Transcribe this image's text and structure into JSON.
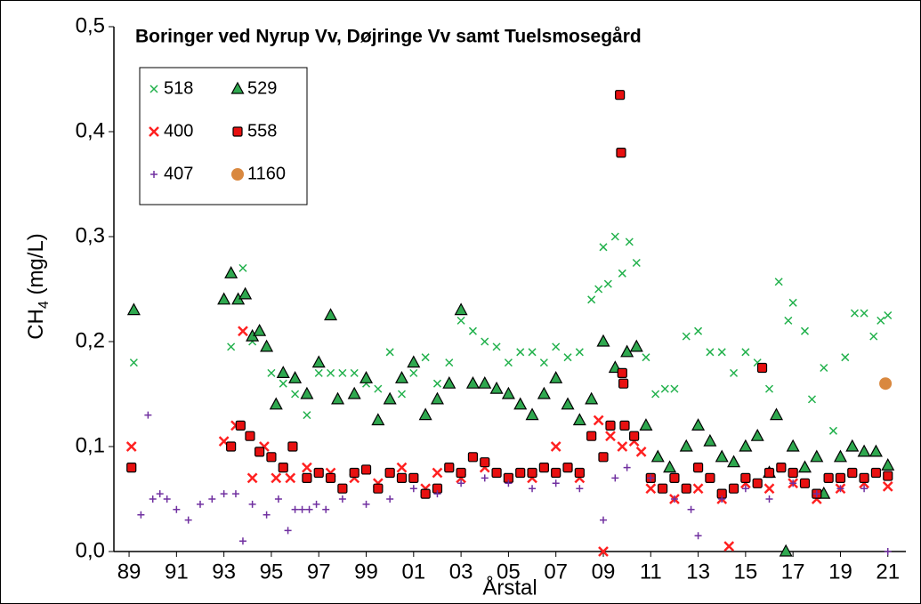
{
  "chart_data": {
    "type": "scatter",
    "title": "Boringer ved Nyrup Vv, Døjringe Vv samt Tuelsmosegård",
    "x_label": "Årstal",
    "y_label": [
      "CH",
      "4",
      " (mg/L)"
    ],
    "xlim": [
      1988.36,
      2021.76
    ],
    "ylim": [
      0,
      0.5
    ],
    "xticks": [
      {
        "value": 1989,
        "label": "89"
      },
      {
        "value": 1991,
        "label": "91"
      },
      {
        "value": 1993,
        "label": "93"
      },
      {
        "value": 1995,
        "label": "95"
      },
      {
        "value": 1997,
        "label": "97"
      },
      {
        "value": 1999,
        "label": "99"
      },
      {
        "value": 2001,
        "label": "01"
      },
      {
        "value": 2003,
        "label": "03"
      },
      {
        "value": 2005,
        "label": "05"
      },
      {
        "value": 2007,
        "label": "07"
      },
      {
        "value": 2009,
        "label": "09"
      },
      {
        "value": 2011,
        "label": "11"
      },
      {
        "value": 2013,
        "label": "13"
      },
      {
        "value": 2015,
        "label": "15"
      },
      {
        "value": 2017,
        "label": "17"
      },
      {
        "value": 2019,
        "label": "19"
      },
      {
        "value": 2021,
        "label": "21"
      }
    ],
    "yticks": [
      {
        "value": 0,
        "label": "0,0"
      },
      {
        "value": 0.1,
        "label": "0,1"
      },
      {
        "value": 0.2,
        "label": "0,2"
      },
      {
        "value": 0.3,
        "label": "0,3"
      },
      {
        "value": 0.4,
        "label": "0,4"
      },
      {
        "value": 0.5,
        "label": "0,5"
      }
    ],
    "grid": false,
    "legend": "upper left",
    "series": [
      {
        "name": "518",
        "color": "#22b14c",
        "marker": "x",
        "x": [
          1989.2,
          1993.3,
          1993.8,
          1994.2,
          1995,
          1995.5,
          1996,
          1996.5,
          1997,
          1997.5,
          1998,
          1998.5,
          1999,
          1999.5,
          2000,
          2000.5,
          2001,
          2001.5,
          2002,
          2002.5,
          2003,
          2003.5,
          2004,
          2004.5,
          2005,
          2005.5,
          2006,
          2006.5,
          2007,
          2007.5,
          2008,
          2008.5,
          2008.8,
          2009,
          2009.2,
          2009.5,
          2009.8,
          2010.1,
          2010.4,
          2010.8,
          2011.2,
          2011.6,
          2012,
          2012.5,
          2013,
          2013.5,
          2014,
          2014.5,
          2015,
          2015.5,
          2016,
          2016.4,
          2016.8,
          2017,
          2017.5,
          2017.8,
          2018.3,
          2018.7,
          2019.2,
          2019.6,
          2020,
          2020.4,
          2020.7,
          2021
        ],
        "values": [
          0.18,
          0.195,
          0.27,
          0.2,
          0.17,
          0.16,
          0.15,
          0.13,
          0.17,
          0.17,
          0.17,
          0.17,
          0.16,
          0.155,
          0.19,
          0.15,
          0.17,
          0.185,
          0.16,
          0.18,
          0.22,
          0.21,
          0.2,
          0.195,
          0.18,
          0.19,
          0.19,
          0.18,
          0.195,
          0.185,
          0.19,
          0.24,
          0.25,
          0.29,
          0.255,
          0.3,
          0.265,
          0.295,
          0.275,
          0.185,
          0.15,
          0.155,
          0.155,
          0.205,
          0.21,
          0.19,
          0.19,
          0.17,
          0.19,
          0.18,
          0.155,
          0.257,
          0.22,
          0.237,
          0.21,
          0.145,
          0.175,
          0.115,
          0.185,
          0.227,
          0.227,
          0.205,
          0.22,
          0.225
        ]
      },
      {
        "name": "529",
        "color": "#2fa84f",
        "marker": "triangle",
        "x": [
          1989.2,
          1993,
          1993.3,
          1993.6,
          1993.9,
          1994.2,
          1994.5,
          1994.8,
          1995.2,
          1995.5,
          1996,
          1996.5,
          1997,
          1997.5,
          1997.8,
          1998.5,
          1999,
          1999.5,
          2000,
          2000.5,
          2001,
          2001.5,
          2002,
          2002.5,
          2003,
          2003.5,
          2004,
          2004.5,
          2005,
          2005.5,
          2006,
          2006.5,
          2007,
          2007.5,
          2008,
          2008.5,
          2009,
          2009.5,
          2010,
          2010.4,
          2010.8,
          2011.3,
          2011.8,
          2012.5,
          2013,
          2013.5,
          2014,
          2014.5,
          2015,
          2015.5,
          2016,
          2016.3,
          2016.7,
          2017,
          2017.5,
          2018,
          2018.3,
          2019,
          2019.5,
          2020,
          2020.5,
          2021
        ],
        "values": [
          0.23,
          0.24,
          0.265,
          0.24,
          0.245,
          0.205,
          0.21,
          0.195,
          0.14,
          0.17,
          0.165,
          0.15,
          0.18,
          0.225,
          0.145,
          0.15,
          0.165,
          0.125,
          0.145,
          0.165,
          0.18,
          0.13,
          0.145,
          0.16,
          0.23,
          0.16,
          0.16,
          0.155,
          0.15,
          0.14,
          0.13,
          0.15,
          0.165,
          0.14,
          0.125,
          0.145,
          0.2,
          0.175,
          0.19,
          0.195,
          0.12,
          0.09,
          0.08,
          0.1,
          0.12,
          0.105,
          0.09,
          0.085,
          0.1,
          0.11,
          0.075,
          0.13,
          0,
          0.1,
          0.08,
          0.09,
          0.055,
          0.09,
          0.1,
          0.095,
          0.095,
          0.082
        ]
      },
      {
        "name": "400",
        "color": "#ff2020",
        "marker": "x-bold",
        "x": [
          1989.1,
          1993,
          1993.5,
          1993.8,
          1994.2,
          1994.7,
          1995.2,
          1995.8,
          1996.5,
          1997.5,
          1998.5,
          1999.5,
          2000.5,
          2001.5,
          2002,
          2003,
          2004,
          2005,
          2006,
          2007,
          2008,
          2008.8,
          2009,
          2009.3,
          2009.8,
          2010.3,
          2010.6,
          2011,
          2012,
          2013,
          2014,
          2014.3,
          2015,
          2016,
          2017,
          2018,
          2019,
          2020,
          2021
        ],
        "values": [
          0.1,
          0.105,
          0.12,
          0.21,
          0.07,
          0.1,
          0.07,
          0.07,
          0.08,
          0.075,
          0.07,
          0.065,
          0.08,
          0.06,
          0.075,
          0.07,
          0.08,
          0.07,
          0.07,
          0.1,
          0.07,
          0.125,
          0,
          0.11,
          0.1,
          0.105,
          0.095,
          0.06,
          0.05,
          0.06,
          0.05,
          0.005,
          0.065,
          0.06,
          0.065,
          0.05,
          0.06,
          0.065,
          0.062
        ]
      },
      {
        "name": "558",
        "color": "#e81010",
        "marker": "square",
        "x": [
          1989.1,
          1993.3,
          1993.7,
          1994.1,
          1994.5,
          1995,
          1995.5,
          1995.9,
          1996.5,
          1997,
          1997.5,
          1998,
          1998.5,
          1999,
          1999.5,
          2000,
          2000.5,
          2001,
          2001.5,
          2002,
          2002.5,
          2003,
          2003.5,
          2004,
          2004.5,
          2005,
          2005.5,
          2006,
          2006.5,
          2007,
          2007.5,
          2008,
          2008.5,
          2009,
          2009.3,
          2009.7,
          2009.75,
          2009.8,
          2009.85,
          2009.9,
          2010.3,
          2011,
          2011.5,
          2012,
          2012.5,
          2013,
          2013.5,
          2014,
          2014.5,
          2015,
          2015.5,
          2015.7,
          2016,
          2016.5,
          2017,
          2017.5,
          2018,
          2018.5,
          2019,
          2019.5,
          2020,
          2020.5,
          2021
        ],
        "values": [
          0.08,
          0.1,
          0.12,
          0.11,
          0.095,
          0.09,
          0.08,
          0.1,
          0.07,
          0.075,
          0.07,
          0.06,
          0.075,
          0.078,
          0.06,
          0.075,
          0.07,
          0.07,
          0.055,
          0.06,
          0.08,
          0.075,
          0.09,
          0.085,
          0.075,
          0.07,
          0.075,
          0.075,
          0.08,
          0.075,
          0.08,
          0.075,
          0.11,
          0.09,
          0.12,
          0.435,
          0.38,
          0.17,
          0.16,
          0.12,
          0.11,
          0.07,
          0.06,
          0.07,
          0.06,
          0.08,
          0.07,
          0.055,
          0.06,
          0.07,
          0.065,
          0.175,
          0.075,
          0.08,
          0.075,
          0.065,
          0.055,
          0.07,
          0.07,
          0.075,
          0.07,
          0.075,
          0.072
        ]
      },
      {
        "name": "407",
        "color": "#7030a0",
        "marker": "plus",
        "x": [
          1989.5,
          1989.8,
          1990,
          1990.3,
          1990.6,
          1991,
          1991.5,
          1992,
          1992.5,
          1993,
          1993.5,
          1993.8,
          1994.2,
          1994.8,
          1995.3,
          1995.7,
          1996,
          1996.3,
          1996.6,
          1996.9,
          1997.3,
          1998,
          1999,
          2000,
          2001,
          2002,
          2003,
          2004,
          2005,
          2006,
          2007,
          2008,
          2009,
          2009.5,
          2010,
          2011,
          2012,
          2012.7,
          2013,
          2014,
          2015,
          2016,
          2017,
          2018,
          2019,
          2020,
          2021
        ],
        "values": [
          0.035,
          0.13,
          0.05,
          0.055,
          0.05,
          0.04,
          0.03,
          0.045,
          0.05,
          0.055,
          0.055,
          0.01,
          0.045,
          0.035,
          0.05,
          0.02,
          0.04,
          0.04,
          0.04,
          0.045,
          0.04,
          0.05,
          0.045,
          0.05,
          0.06,
          0.055,
          0.065,
          0.07,
          0.065,
          0.06,
          0.065,
          0.06,
          0.03,
          0.07,
          0.08,
          0.07,
          0.05,
          0.04,
          0.015,
          0.05,
          0.06,
          0.05,
          0.065,
          0.055,
          0.06,
          0.06,
          0
        ]
      },
      {
        "name": "1160",
        "color": "#d9883f",
        "marker": "circle",
        "x": [
          2020.9
        ],
        "values": [
          0.16
        ]
      }
    ]
  }
}
